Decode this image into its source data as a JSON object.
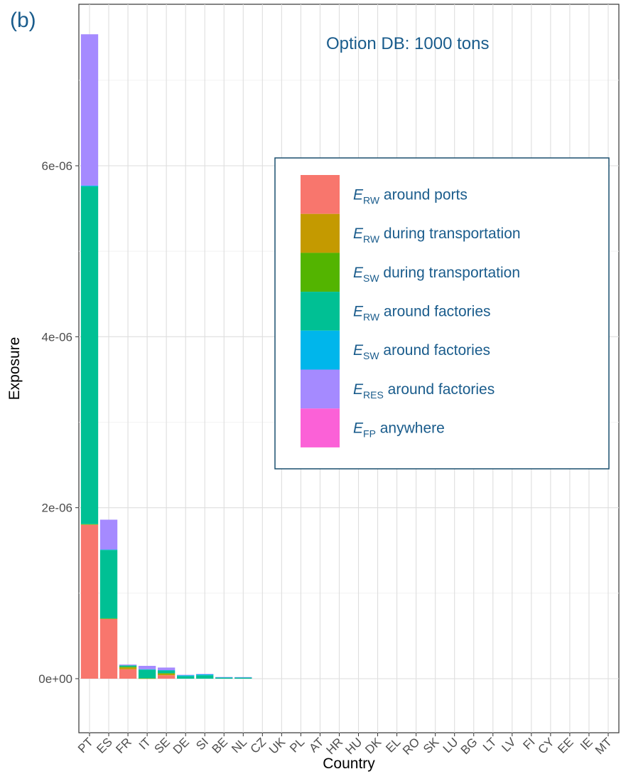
{
  "panel_label": "(b)",
  "option_label": "Option DB: 1000 tons",
  "chart_data": {
    "type": "bar",
    "stacked": true,
    "xlabel": "Country",
    "ylabel": "Exposure",
    "ylim": [
      -3.5e-07,
      7.7e-06
    ],
    "grid": true,
    "legend_position": "right",
    "y_ticks": [
      {
        "value": 0,
        "label": "0e+00"
      },
      {
        "value": 2e-06,
        "label": "2e-06"
      },
      {
        "value": 4e-06,
        "label": "4e-06"
      },
      {
        "value": 6e-06,
        "label": "6e-06"
      }
    ],
    "categories": [
      "PT",
      "ES",
      "FR",
      "IT",
      "SE",
      "DE",
      "SI",
      "BE",
      "NL",
      "CZ",
      "UK",
      "PL",
      "AT",
      "HR",
      "HU",
      "DK",
      "EL",
      "RO",
      "SK",
      "LU",
      "BG",
      "LT",
      "LV",
      "FI",
      "CY",
      "EE",
      "IE",
      "MT"
    ],
    "series": [
      {
        "name": "around ports",
        "sym": "E",
        "sub": "RW",
        "color": "#F8766D",
        "values": [
          1.8e-06,
          7e-07,
          1.1e-07,
          0.0,
          4e-08,
          0.0,
          0.0,
          0.0,
          0.0,
          0,
          0,
          0,
          0,
          0,
          0,
          0,
          0,
          0,
          0,
          0,
          0,
          0,
          0,
          0,
          0,
          0,
          0,
          0
        ]
      },
      {
        "name": "during transportation",
        "sym": "E",
        "sub": "RW",
        "color": "#C49A00",
        "values": [
          5e-09,
          3e-09,
          2e-08,
          3e-09,
          1.5e-08,
          0,
          0,
          0,
          0,
          0,
          0,
          0,
          0,
          0,
          0,
          0,
          0,
          0,
          0,
          0,
          0,
          0,
          0,
          0,
          0,
          0,
          0,
          0
        ]
      },
      {
        "name": "during transportation",
        "sym": "E",
        "sub": "SW",
        "color": "#53B400",
        "values": [
          3e-09,
          2e-09,
          1e-08,
          2e-09,
          1e-08,
          0,
          0,
          0,
          0,
          0,
          0,
          0,
          0,
          0,
          0,
          0,
          0,
          0,
          0,
          0,
          0,
          0,
          0,
          0,
          0,
          0,
          0,
          0
        ]
      },
      {
        "name": "around factories",
        "sym": "E",
        "sub": "RW",
        "color": "#00C094",
        "values": [
          3.95e-06,
          8e-07,
          1.5e-08,
          1e-07,
          3e-08,
          3e-08,
          4e-08,
          1.5e-08,
          1.5e-08,
          0,
          0,
          0,
          0,
          0,
          0,
          0,
          0,
          0,
          0,
          0,
          0,
          0,
          0,
          0,
          0,
          0,
          0,
          0
        ]
      },
      {
        "name": "around factories",
        "sym": "E",
        "sub": "SW",
        "color": "#00B6EB",
        "values": [
          1e-08,
          5e-09,
          0.0,
          5e-09,
          5e-09,
          1e-08,
          1e-08,
          2e-09,
          2e-09,
          0,
          0,
          0,
          0,
          0,
          0,
          0,
          0,
          0,
          0,
          0,
          0,
          0,
          0,
          0,
          0,
          0,
          0,
          0
        ]
      },
      {
        "name": "around factories",
        "sym": "E",
        "sub": "RES",
        "color": "#A58AFF",
        "values": [
          1.77e-06,
          3.5e-07,
          1e-08,
          4e-08,
          3e-08,
          5e-09,
          5e-09,
          2e-09,
          1e-09,
          0,
          0,
          0,
          0,
          0,
          0,
          0,
          0,
          0,
          0,
          0,
          0,
          0,
          0,
          0,
          0,
          0,
          0,
          0
        ]
      },
      {
        "name": "anywhere",
        "sym": "E",
        "sub": "FP",
        "color": "#FB61D7",
        "values": [
          0,
          0,
          0,
          0,
          0,
          0,
          0,
          0,
          0,
          0,
          0,
          0,
          0,
          0,
          0,
          0,
          0,
          0,
          0,
          0,
          0,
          0,
          0,
          0,
          0,
          0,
          0,
          0
        ]
      }
    ]
  }
}
